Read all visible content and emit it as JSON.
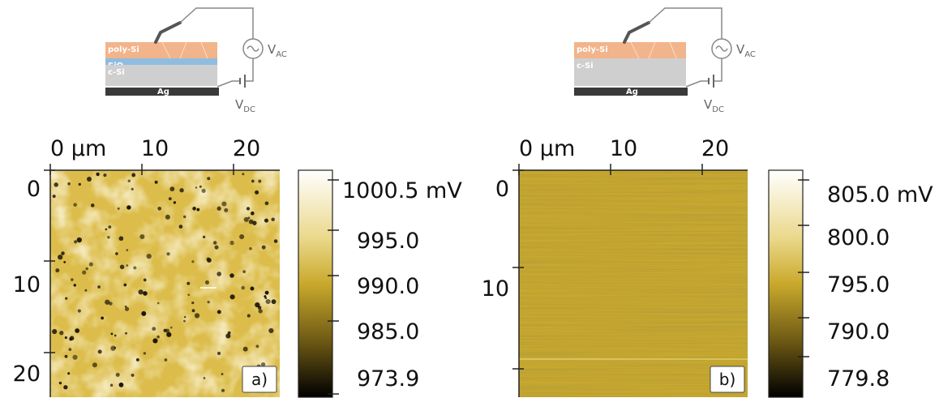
{
  "panels": [
    {
      "tag": "a)",
      "diagram": {
        "layers": [
          {
            "text": "poly-Si"
          },
          {
            "text": "SiO",
            "sub": "2"
          },
          {
            "text": "c-Si"
          },
          {
            "text": "Ag"
          }
        ],
        "vac": {
          "text": "V",
          "sub": "AC"
        },
        "vdc": {
          "text": "V",
          "sub": "DC"
        }
      },
      "x_ticks": [
        "0 µm",
        "10",
        "20"
      ],
      "y_ticks": [
        "0",
        "10",
        "20"
      ],
      "colorbar": [
        "1000.5 mV",
        "995.0",
        "990.0",
        "985.0",
        "973.9"
      ]
    },
    {
      "tag": "b)",
      "diagram": {
        "layers": [
          {
            "text": "poly-Si"
          },
          {
            "text": "c-Si"
          },
          {
            "text": "Ag"
          }
        ],
        "vac": {
          "text": "V",
          "sub": "AC"
        },
        "vdc": {
          "text": "V",
          "sub": "DC"
        }
      },
      "x_ticks": [
        "0 µm",
        "10",
        "20"
      ],
      "y_ticks": [
        "0",
        "10"
      ],
      "colorbar": [
        "805.0 mV",
        "800.0",
        "795.0",
        "790.0",
        "779.8"
      ]
    }
  ]
}
